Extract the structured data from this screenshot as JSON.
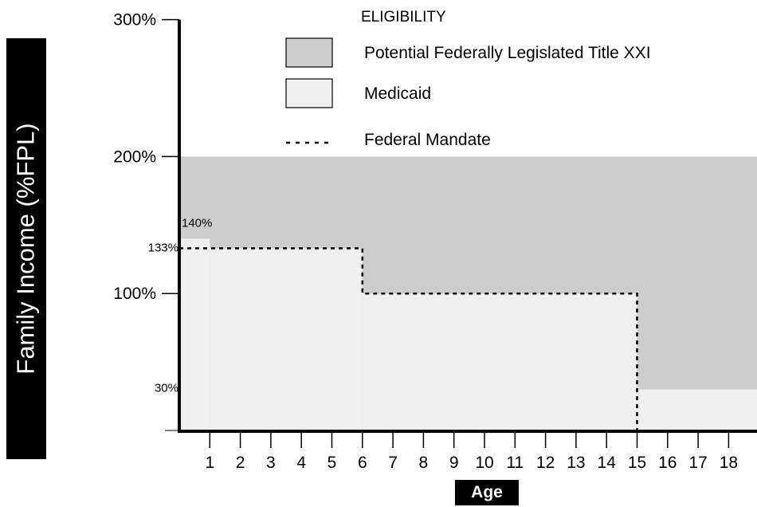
{
  "chart_data": {
    "type": "area",
    "title": "",
    "ylabel": "Family Income (%FPL)",
    "xlabel": "Age",
    "xlim": [
      0,
      19
    ],
    "ylim": [
      0,
      300
    ],
    "y_ticks": [
      {
        "value": 300,
        "label": "300%",
        "size": "large"
      },
      {
        "value": 200,
        "label": "200%",
        "size": "large"
      },
      {
        "value": 100,
        "label": "100%",
        "size": "large"
      }
    ],
    "y_annotations": [
      {
        "value": 140,
        "label": "140%"
      },
      {
        "value": 133,
        "label": "133%"
      },
      {
        "value": 30,
        "label": "30%"
      }
    ],
    "x_ticks": [
      "1",
      "2",
      "3",
      "4",
      "5",
      "6",
      "7",
      "8",
      "9",
      "10",
      "11",
      "12",
      "13",
      "14",
      "15",
      "16",
      "17",
      "18"
    ],
    "legend": {
      "title": "ELIGIBILITY",
      "placement": "top",
      "items": [
        {
          "label": "Potential Federally Legislated Title XXI",
          "kind": "fill",
          "color": "#cdcdcd"
        },
        {
          "label": "Medicaid",
          "kind": "fill",
          "color": "#f0f0f0"
        },
        {
          "label": "Federal Mandate",
          "kind": "dashed-line",
          "color": "#000000"
        }
      ]
    },
    "series": [
      {
        "name": "Potential Federally Legislated Title XXI",
        "color": "#cdcdcd",
        "steps": [
          {
            "x_from": 0,
            "x_to": 19,
            "y": 200
          }
        ]
      },
      {
        "name": "Medicaid",
        "color": "#f0f0f0",
        "steps": [
          {
            "x_from": 0,
            "x_to": 1,
            "y": 140
          },
          {
            "x_from": 1,
            "x_to": 6,
            "y": 133
          },
          {
            "x_from": 6,
            "x_to": 15,
            "y": 100
          },
          {
            "x_from": 15,
            "x_to": 19,
            "y": 30
          }
        ]
      },
      {
        "name": "Federal Mandate",
        "color": "#000000",
        "style": "dashed",
        "steps": [
          {
            "x_from": 0,
            "x_to": 6,
            "y": 133
          },
          {
            "x_from": 6,
            "x_to": 15,
            "y": 100
          },
          {
            "x_from": 15,
            "x_to": 15,
            "y": 0
          }
        ]
      }
    ]
  }
}
